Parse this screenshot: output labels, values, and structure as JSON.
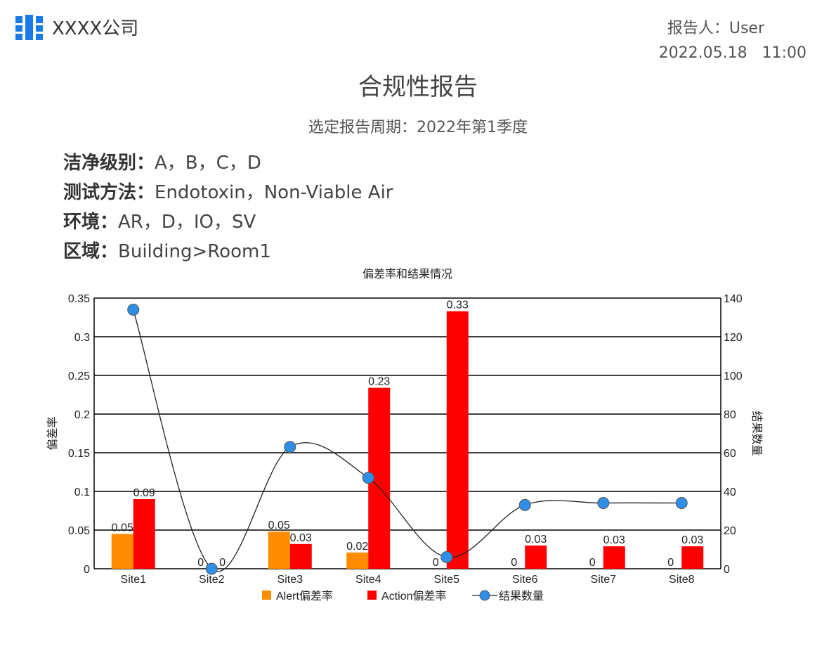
{
  "header": {
    "company": "XXXX公司",
    "reporter": "报告人：User",
    "datetime": "2022.05.18   11:00"
  },
  "report": {
    "title": "合规性报告",
    "period": "选定报告周期：2022年第1季度"
  },
  "filters": [
    {
      "label": "洁净级别：",
      "value": "A，B，C，D"
    },
    {
      "label": "测试方法：",
      "value": "Endotoxin，Non-Viable Air"
    },
    {
      "label": "环境：",
      "value": "AR，D，IO，SV"
    },
    {
      "label": "区域：",
      "value": "Building>Room1"
    }
  ],
  "colors": {
    "logo": "#1a7be8",
    "alert": "#ff8c00",
    "action": "#ff0000",
    "count_point": "#2f8fe8"
  },
  "chart_data": {
    "type": "bar",
    "title": "偏差率和结果情况",
    "categories": [
      "Site1",
      "Site2",
      "Site3",
      "Site4",
      "Site5",
      "Site6",
      "Site7",
      "Site8"
    ],
    "ylabel": "偏差率",
    "ylim": [
      0,
      0.35
    ],
    "yticks": [
      "0",
      "0.05",
      "0.1",
      "0.15",
      "0.2",
      "0.25",
      "0.3",
      "0.35"
    ],
    "y2label": "结果数量",
    "y2lim": [
      0,
      140
    ],
    "y2ticks": [
      "0",
      "20",
      "40",
      "60",
      "80",
      "100",
      "120",
      "140"
    ],
    "grid": true,
    "legend_position": "bottom",
    "series": [
      {
        "name": "Alert偏差率",
        "type": "bar",
        "axis": "left",
        "values": [
          0.045,
          0,
          0.048,
          0.021,
          0,
          0,
          0,
          0
        ],
        "labels": [
          "0.05",
          "0",
          "0.05",
          "0.02",
          "0",
          "0",
          "0",
          "0"
        ]
      },
      {
        "name": "Action偏差率",
        "type": "bar",
        "axis": "left",
        "values": [
          0.09,
          0,
          0.032,
          0.234,
          0.333,
          0.03,
          0.029,
          0.029
        ],
        "labels": [
          "0.09",
          "0",
          "0.03",
          "0.23",
          "0.33",
          "0.03",
          "0.03",
          "0.03"
        ]
      },
      {
        "name": "结果数量",
        "type": "line",
        "axis": "right",
        "values": [
          134,
          0,
          63,
          47,
          6,
          33,
          34,
          34
        ]
      }
    ]
  }
}
